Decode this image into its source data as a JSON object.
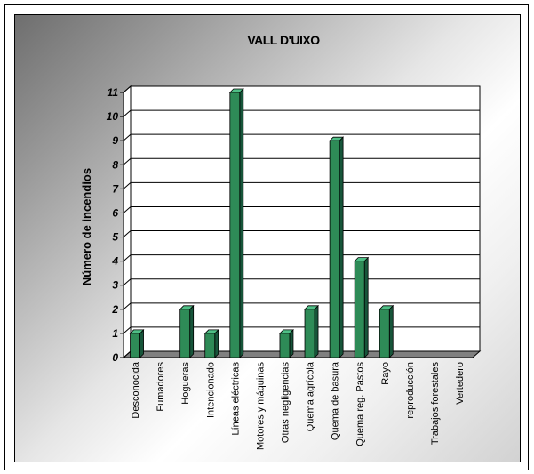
{
  "chart_data": {
    "type": "bar",
    "title": "VALL D'UIXO",
    "xlabel": "",
    "ylabel": "Número de incendios",
    "ylim": [
      0,
      11
    ],
    "yticks": [
      "0",
      "1",
      "2",
      "3",
      "4",
      "5",
      "6",
      "7",
      "8",
      "9",
      "10",
      "11"
    ],
    "grid": true,
    "legend": "none",
    "categories": [
      "Desconocida",
      "Fumadores",
      "Hogueras",
      "Intencionado",
      "Líneas eléctricas",
      "Motores y máquinas",
      "Otras negligencias",
      "Quema agrícola",
      "Quema de basura",
      "Quema reg. Pastos",
      "Rayo",
      "reproducción",
      "Trabajos forestales",
      "Vertedero"
    ],
    "values": [
      1,
      0,
      2,
      1,
      11,
      0,
      1,
      2,
      9,
      4,
      2,
      0,
      0,
      0
    ],
    "colors": {
      "bar_front": "#2e8b57",
      "bar_top": "#4fbf86",
      "bar_side": "#17553a",
      "floor": "#808080"
    }
  }
}
